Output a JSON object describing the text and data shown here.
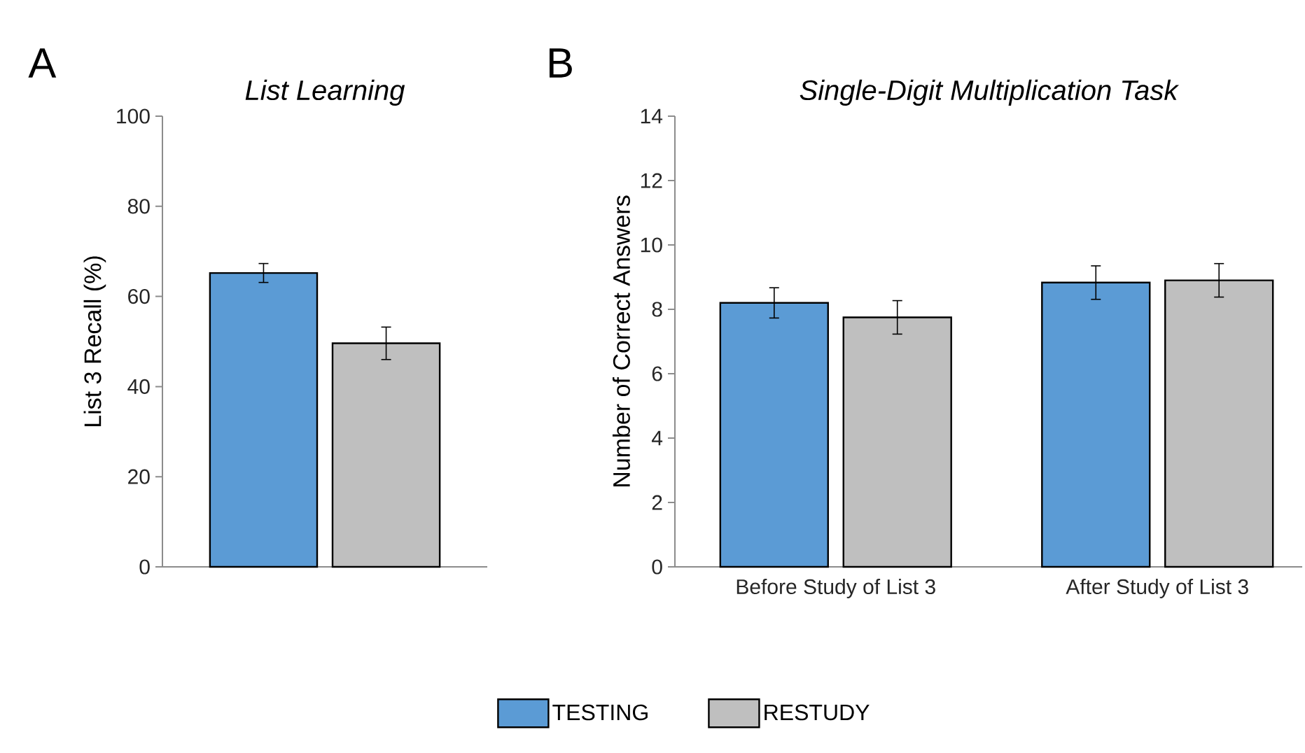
{
  "chart_data": [
    {
      "type": "bar",
      "title": "List Learning",
      "ylabel": "List 3 Recall (%)",
      "categories": [
        null
      ],
      "series": [
        {
          "color": "#5b9bd5",
          "values": [
            65.2
          ],
          "errors": [
            2.1
          ]
        },
        {
          "color": "#bfbfbf",
          "values": [
            49.6
          ],
          "errors": [
            3.6
          ]
        }
      ],
      "ylim": [
        0,
        100
      ],
      "yticks": [
        0,
        20,
        40,
        60,
        80,
        100
      ],
      "annotations": [
        "A"
      ]
    },
    {
      "type": "bar",
      "title": "Single-Digit Multiplication Task",
      "ylabel": "Number of Correct Answers",
      "categories": [
        "Before Study of List 3",
        "After Study of List 3"
      ],
      "series": [
        {
          "name": "TESTING",
          "color": "#5b9bd5",
          "values": [
            8.2,
            8.83
          ],
          "errors": [
            0.47,
            0.52
          ]
        },
        {
          "name": "RESTUDY",
          "color": "#bfbfbf",
          "values": [
            7.75,
            8.9
          ],
          "errors": [
            0.52,
            0.52
          ]
        }
      ],
      "ylim": [
        0,
        14
      ],
      "yticks": [
        0,
        2,
        4,
        6,
        8,
        10,
        12,
        14
      ],
      "legend": "bottom",
      "annotations": [
        "B"
      ]
    }
  ]
}
